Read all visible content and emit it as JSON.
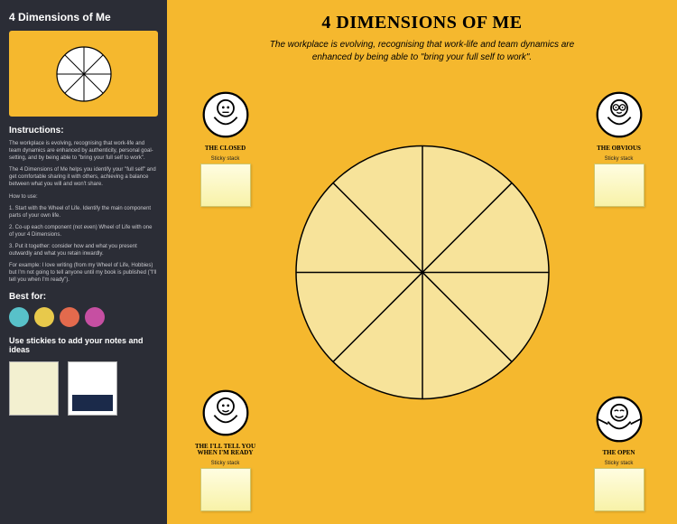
{
  "sidebar": {
    "title": "4 Dimensions of Me",
    "instructions_heading": "Instructions:",
    "para1": "The workplace is evolving, recognising that work-life and team dynamics are enhanced by authenticity, personal goal-setting, and by being able to \"bring your full self to work\".",
    "para2": "The 4 Dimensions of Me helps you identify your \"full self\" and get comfortable sharing it with others, achieving a balance between what you will and won't share.",
    "howto": "How to use:",
    "step1": "1.  Start with the Wheel of Life. Identify the main component parts of your own life.",
    "step2": "2.  Co-up each component (not even) Wheel of Life with one of your 4 Dimensions.",
    "step3": "3.  Put it together: consider how and what you present outwardly and what you retain inwardly.",
    "example": "For example: I love writing (from my Wheel of Life, Hobbies) but I'm not going to tell anyone until my book is published (\"I'll tell you when I'm ready\").",
    "bestfor": "Best for:",
    "stickies_heading": "Use stickies to add your notes and ideas",
    "badge_colors": [
      "#58c1c9",
      "#e8c94b",
      "#e36a4d",
      "#c64fa2"
    ]
  },
  "canvas": {
    "title": "4 DIMENSIONS OF ME",
    "subtitle": "The workplace is evolving, recognising that work-life and team dynamics are enhanced by being able to \"bring your full self to work\".",
    "background_color": "#f5b82e",
    "wheel": {
      "radius": 140,
      "segments": 8,
      "stroke": "#000000",
      "stroke_width": 1.5,
      "fill": "#f7e39a"
    },
    "sticky_label": "Sticky stack",
    "personas": {
      "tl": {
        "label": "THE CLOSED",
        "face": "neutral"
      },
      "tr": {
        "label": "THE OBVIOUS",
        "face": "glasses"
      },
      "bl": {
        "label": "THE I'LL TELL YOU WHEN I'M READY",
        "face": "smile"
      },
      "br": {
        "label": "THE OPEN",
        "face": "open"
      }
    }
  }
}
